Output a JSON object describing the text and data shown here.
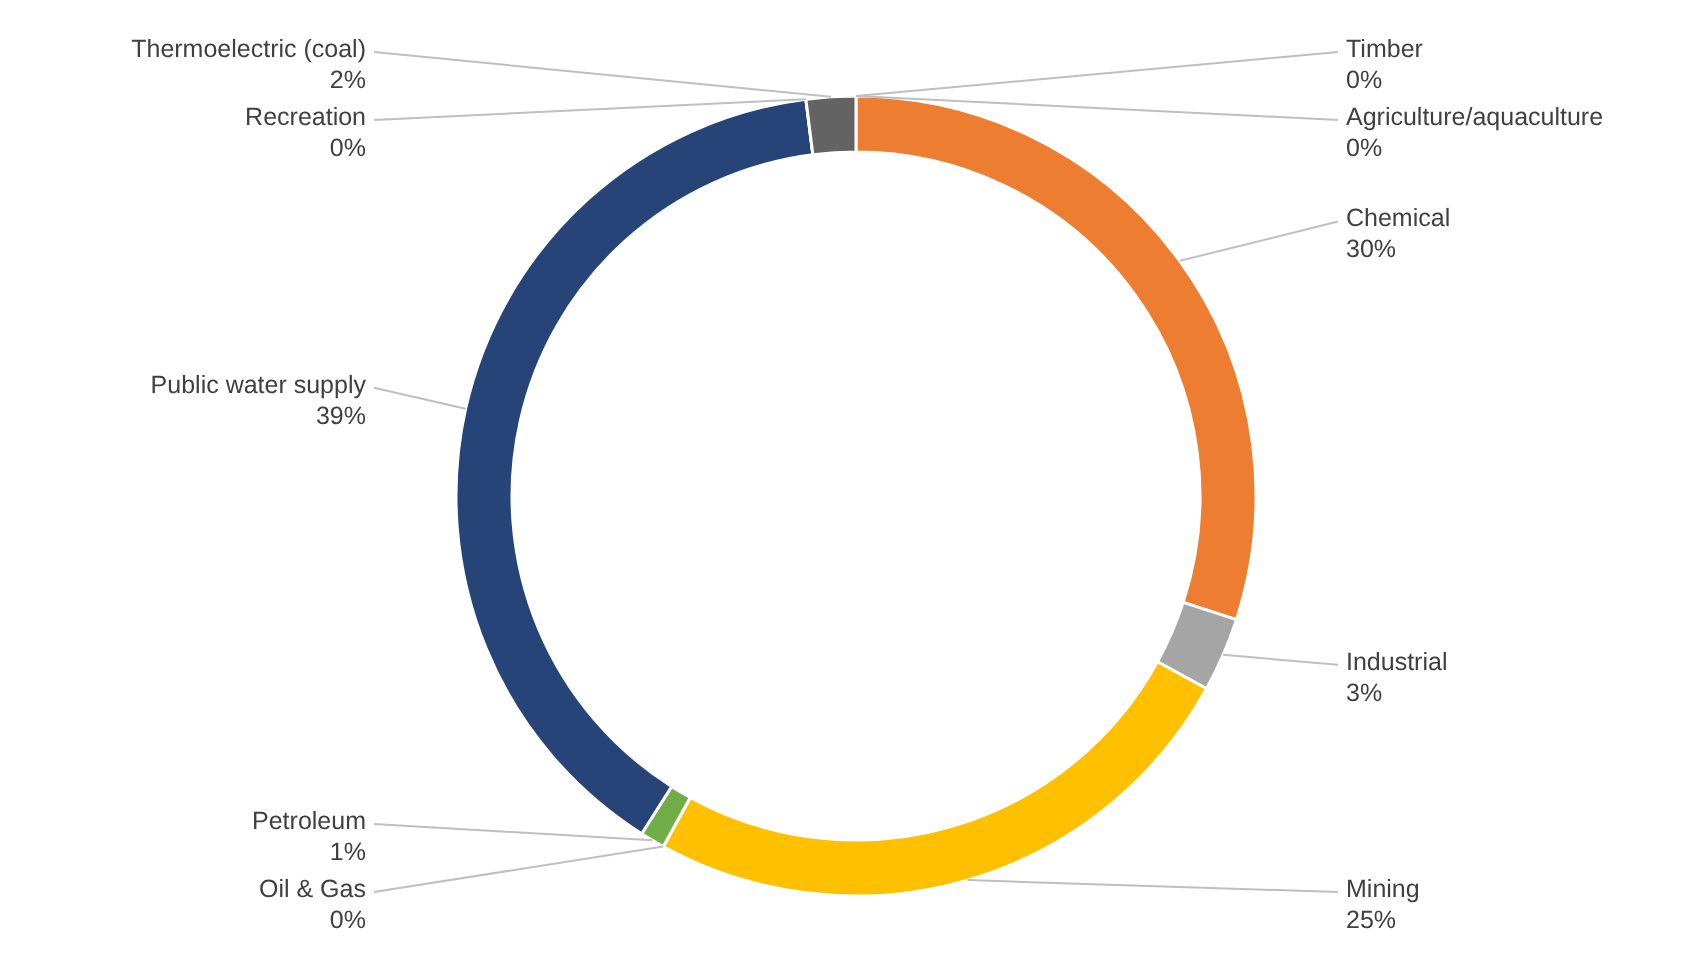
{
  "chart_data": {
    "type": "donut",
    "categories": [
      "Timber",
      "Agriculture/aquaculture",
      "Chemical",
      "Industrial",
      "Mining",
      "Oil & Gas",
      "Petroleum",
      "Public water supply",
      "Recreation",
      "Thermoelectric (coal)"
    ],
    "values": [
      0,
      0,
      30,
      3,
      25,
      0,
      1,
      39,
      0,
      2
    ],
    "value_labels": [
      "0%",
      "0%",
      "30%",
      "3%",
      "25%",
      "0%",
      "1%",
      "39%",
      "0%",
      "2%"
    ],
    "colors": [
      "#997300",
      "#4472c4",
      "#ed7d31",
      "#a5a5a5",
      "#ffc000",
      "#5b9bd5",
      "#70ad47",
      "#264478",
      "#9e480e",
      "#636363"
    ],
    "legend": false
  }
}
